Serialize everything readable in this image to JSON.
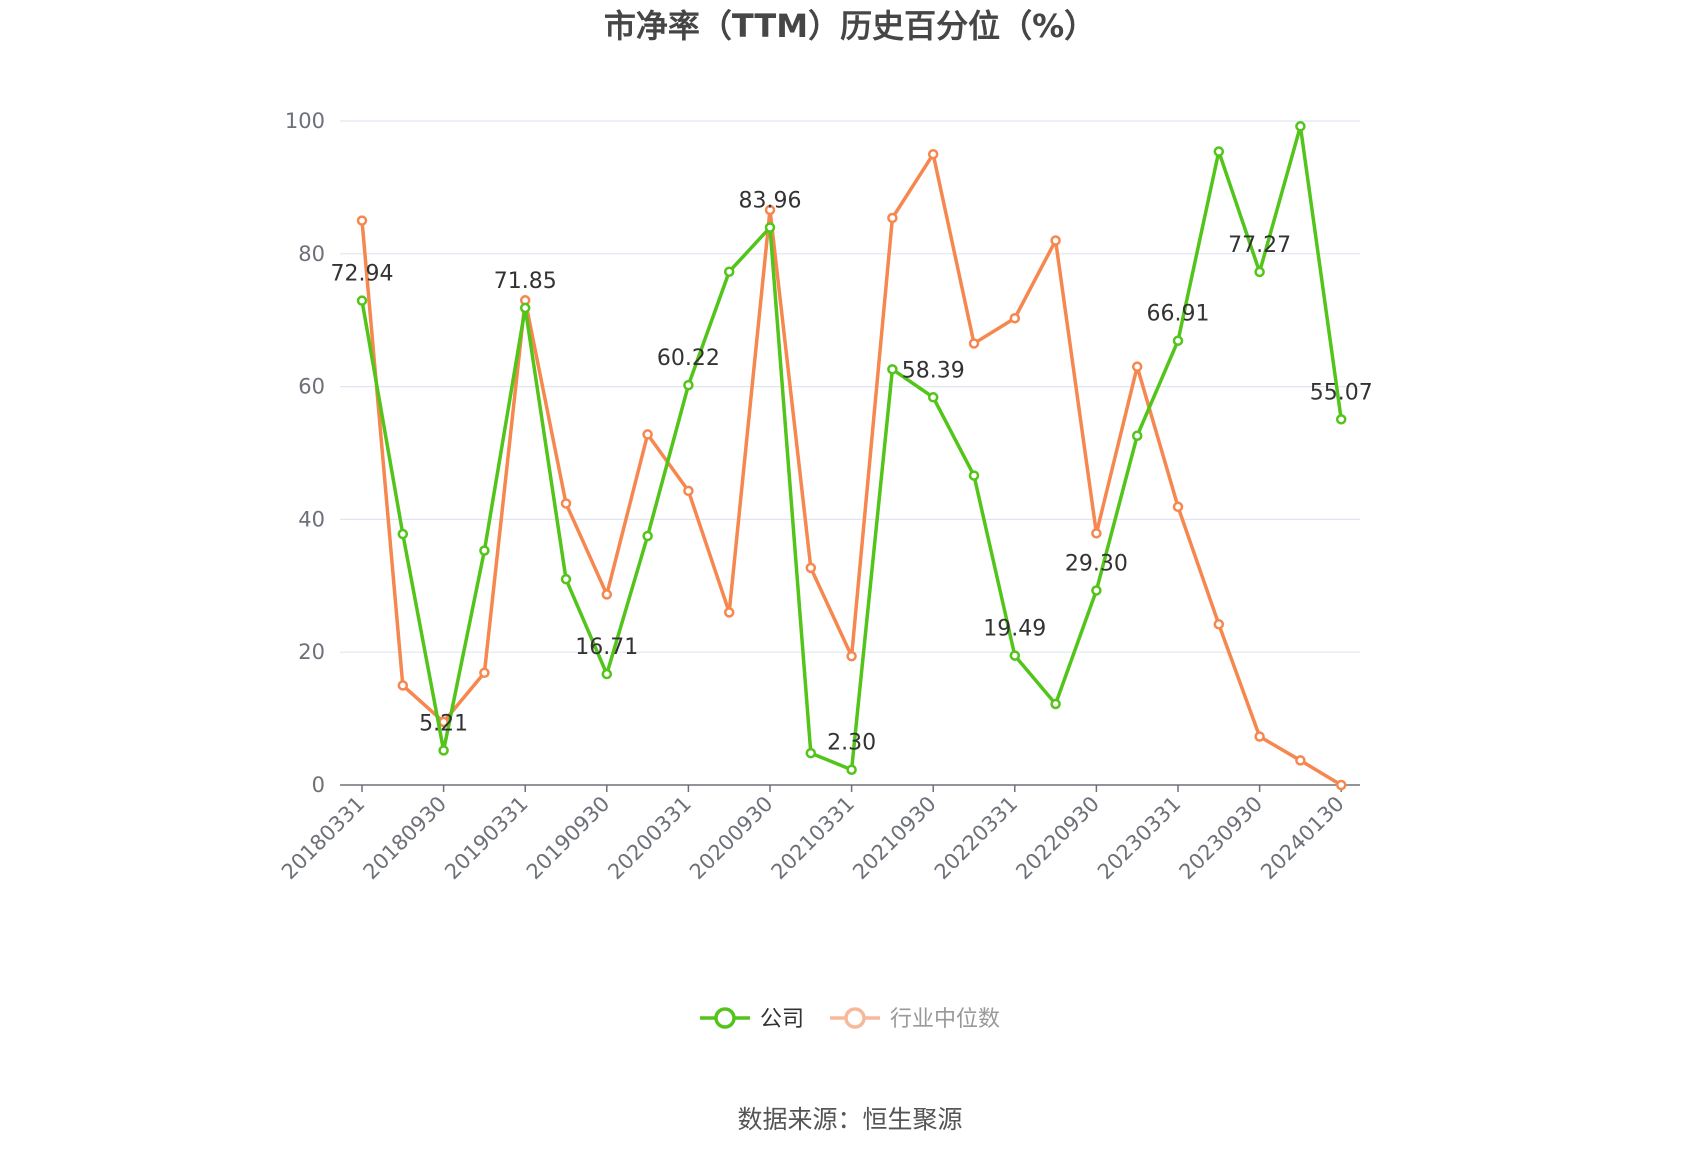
{
  "chart_data": {
    "type": "line",
    "title": "市净率（TTM）历史百分位（%）",
    "ylim": [
      0,
      100
    ],
    "y_ticks": [
      0,
      20,
      40,
      60,
      80,
      100
    ],
    "grid": true,
    "legend_position": "bottom",
    "x": [
      "20180331",
      "20180630",
      "20180930",
      "20181231",
      "20190331",
      "20190630",
      "20190930",
      "20191231",
      "20200331",
      "20200630",
      "20200930",
      "20201231",
      "20210331",
      "20210630",
      "20210930",
      "20211231",
      "20220331",
      "20220630",
      "20220930",
      "20221231",
      "20230331",
      "20230630",
      "20230930",
      "20231231",
      "20240130"
    ],
    "x_tick_labels": [
      "20180331",
      "20180930",
      "20190331",
      "20190930",
      "20200331",
      "20200930",
      "20210331",
      "20210930",
      "20220331",
      "20220930",
      "20230331",
      "20230930",
      "20240130"
    ],
    "series": [
      {
        "name": "公司",
        "color": "#52c41a",
        "values": [
          72.94,
          37.8,
          5.21,
          35.3,
          71.85,
          31.0,
          16.71,
          37.5,
          60.22,
          77.3,
          83.96,
          4.8,
          2.3,
          62.6,
          58.39,
          46.6,
          19.49,
          12.2,
          29.3,
          52.6,
          66.91,
          95.4,
          77.27,
          99.2,
          55.07
        ],
        "labels": {
          "0": "72.94",
          "2": "5.21",
          "4": "71.85",
          "6": "16.71",
          "8": "60.22",
          "10": "83.96",
          "12": "2.30",
          "14": "58.39",
          "16": "19.49",
          "18": "29.30",
          "20": "66.91",
          "22": "77.27",
          "24": "55.07"
        }
      },
      {
        "name": "行业中位数",
        "color": "#f5874f",
        "values": [
          85.0,
          15.0,
          9.5,
          16.9,
          73.0,
          42.4,
          28.7,
          52.8,
          44.3,
          26.0,
          86.6,
          32.7,
          19.4,
          85.4,
          95.0,
          66.5,
          70.3,
          82.0,
          37.9,
          63.0,
          41.9,
          24.2,
          7.3,
          3.7,
          0.0
        ]
      }
    ],
    "source": "数据来源：恒生聚源"
  }
}
